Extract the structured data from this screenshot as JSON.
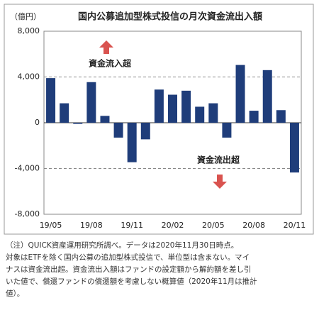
{
  "chart_data": {
    "type": "bar",
    "title": "国内公募追加型株式投信の月次資金流出入額",
    "unit": "（億円）",
    "categories": [
      "19/05",
      null,
      null,
      "19/08",
      null,
      null,
      "19/11",
      null,
      null,
      "20/02",
      null,
      null,
      "20/05",
      null,
      null,
      "20/08",
      null,
      null,
      "20/11"
    ],
    "values": [
      3900,
      1700,
      -100,
      3550,
      600,
      -1300,
      -3450,
      -1450,
      2900,
      2450,
      2800,
      1400,
      1700,
      -1300,
      5050,
      1050,
      4600,
      1100,
      -4350
    ],
    "color": "#1f3d7a",
    "ylim": [
      -8000,
      8000
    ],
    "yticks": [
      {
        "value": -8000,
        "label": "-8,000"
      },
      {
        "value": -4000,
        "label": "-4,000"
      },
      0,
      {
        "value": 4000,
        "label": "4,000"
      },
      {
        "value": 8000,
        "label": "8,000"
      }
    ],
    "grid": true,
    "annotations": [
      "資金流入超",
      "資金流出超"
    ]
  },
  "notes": [
    "（注）QUICK資産運用研究所調べ。データは2020年11月30日時点。",
    "対象はETFを除く国内公募の追加型株式投信で、単位型は含まない。マイ",
    "ナスは資金流出超。資金流出入額はファンドの設定額から解約額を差し引",
    "いた値で、償還ファンドの償還額を考慮しない概算値（2020年11月は推計",
    "値）。"
  ]
}
